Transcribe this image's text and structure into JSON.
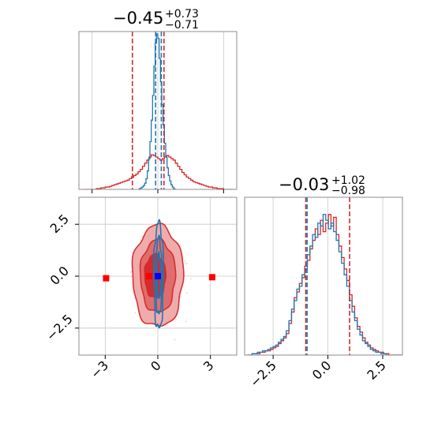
{
  "colors": {
    "red": "#d62728",
    "blue": "#1f77b4",
    "red_fill_light": "#f0a8a8",
    "red_fill_mid": "#e06a6a",
    "red_fill_dark": "#d62728",
    "red_marker": "#ff0000",
    "blue_marker": "#0000ff",
    "scatter_pink": "#e9b3bd",
    "scatter_blue": "#9cc3e6"
  },
  "titles": {
    "param1": {
      "main": "−0.45",
      "sup": "+0.73",
      "sub": "−0.71"
    },
    "param2": {
      "main": "−0.03",
      "sup": "+1.02",
      "sub": "−0.98"
    }
  },
  "chart_data": [
    {
      "type": "histogram",
      "panel": "marginal-param1",
      "xlim": [
        -3.6,
        3.6
      ],
      "x_ticks": [
        -3,
        0,
        3
      ],
      "grid": true,
      "series": [
        {
          "color": "red",
          "bins_left": -3.4,
          "bin_width": 0.1,
          "heights": [
            0,
            0,
            0,
            0,
            0,
            0,
            1,
            1,
            2,
            2,
            3,
            3,
            4,
            5,
            6,
            7,
            8,
            9,
            10,
            11,
            12,
            14,
            16,
            18,
            20,
            23,
            26,
            30,
            34,
            38,
            42,
            45,
            44,
            42,
            40,
            38,
            40,
            42,
            44,
            42,
            40,
            38,
            34,
            30,
            26,
            22,
            19,
            16,
            14,
            12,
            10,
            9,
            8,
            7,
            6,
            5,
            4,
            3,
            3,
            2,
            2,
            1,
            1,
            1,
            0,
            0,
            0,
            0
          ]
        },
        {
          "color": "blue",
          "bins_left": -0.9,
          "bin_width": 0.06,
          "heights": [
            0,
            1,
            2,
            3,
            5,
            8,
            14,
            24,
            40,
            62,
            90,
            122,
            160,
            190,
            202,
            196,
            170,
            140,
            110,
            84,
            60,
            42,
            28,
            18,
            11,
            6,
            3,
            1
          ]
        }
      ],
      "vlines": [
        {
          "color": "red",
          "x": -1.16,
          "style": "dashed"
        },
        {
          "color": "red",
          "x": 0.28,
          "style": "dashed"
        },
        {
          "color": "blue",
          "x": -0.1,
          "style": "dashed"
        },
        {
          "color": "blue",
          "x": 0.16,
          "style": "dashed"
        }
      ]
    },
    {
      "type": "contour",
      "panel": "joint",
      "xlim": [
        -4.5,
        4.5
      ],
      "ylim": [
        -3.8,
        3.8
      ],
      "x_ticks": [
        -3,
        0,
        3
      ],
      "x_tick_labels": [
        "−3",
        "0",
        "3"
      ],
      "y_ticks": [
        -2.5,
        0,
        2.5
      ],
      "y_tick_labels": [
        "−2.5",
        "0.0",
        "2.5"
      ],
      "grid": true,
      "red_contours": [
        {
          "level": "outer",
          "cx": 0,
          "cy": 0,
          "rx": 1.45,
          "ry": 2.45
        },
        {
          "level": "middle",
          "cx": 0,
          "cy": 0,
          "rx": 1.0,
          "ry": 1.75
        },
        {
          "level": "inner",
          "cx": -0.15,
          "cy": 0,
          "rx": 0.6,
          "ry": 1.05
        }
      ],
      "blue_contours": [
        {
          "level": "outer",
          "cx": 0.05,
          "cy": 0,
          "rx": 0.28,
          "ry": 2.55
        },
        {
          "level": "middle",
          "cx": 0.05,
          "cy": 0,
          "rx": 0.18,
          "ry": 1.85
        },
        {
          "level": "inner",
          "cx": 0.05,
          "cy": 0,
          "rx": 0.1,
          "ry": 1.1
        }
      ],
      "markers": [
        {
          "x": -2.95,
          "y": -0.1,
          "color": "red"
        },
        {
          "x": 3.1,
          "y": -0.05,
          "color": "red"
        },
        {
          "x": -0.5,
          "y": 0.0,
          "color": "red"
        },
        {
          "x": 0.0,
          "y": 0.0,
          "color": "blue"
        }
      ]
    },
    {
      "type": "histogram",
      "panel": "marginal-param2",
      "xlim": [
        -3.8,
        3.4
      ],
      "x_ticks": [
        -2.5,
        0,
        2.5
      ],
      "x_tick_labels": [
        "−2.5",
        "0.0",
        "2.5"
      ],
      "grid": true,
      "series": [
        {
          "color": "red",
          "bins_left": -3.7,
          "bin_width": 0.12,
          "heights": [
            0,
            0,
            1,
            1,
            1,
            2,
            2,
            3,
            3,
            4,
            5,
            6,
            8,
            10,
            12,
            15,
            22,
            30,
            40,
            44,
            50,
            54,
            62,
            66,
            74,
            80,
            88,
            84,
            94,
            86,
            92,
            98,
            90,
            96,
            84,
            76,
            68,
            60,
            52,
            42,
            34,
            26,
            20,
            16,
            12,
            9,
            7,
            5,
            4,
            3,
            2,
            2,
            1,
            1,
            0,
            0,
            0,
            0,
            0,
            0
          ]
        },
        {
          "color": "blue",
          "bins_left": -3.7,
          "bin_width": 0.12,
          "heights": [
            0,
            0,
            1,
            1,
            2,
            2,
            3,
            3,
            4,
            5,
            6,
            7,
            9,
            11,
            13,
            17,
            24,
            32,
            38,
            46,
            48,
            56,
            60,
            70,
            76,
            84,
            82,
            92,
            90,
            98,
            94,
            88,
            92,
            86,
            80,
            72,
            64,
            56,
            48,
            38,
            30,
            24,
            18,
            14,
            10,
            8,
            6,
            4,
            3,
            2,
            2,
            1,
            1,
            0,
            0,
            0,
            0,
            0,
            0,
            0
          ]
        }
      ],
      "vlines": [
        {
          "color": "red",
          "x": -1.01,
          "style": "dashed"
        },
        {
          "color": "red",
          "x": 0.99,
          "style": "dashed"
        },
        {
          "color": "blue",
          "x": -0.95,
          "style": "dashed"
        }
      ]
    }
  ]
}
